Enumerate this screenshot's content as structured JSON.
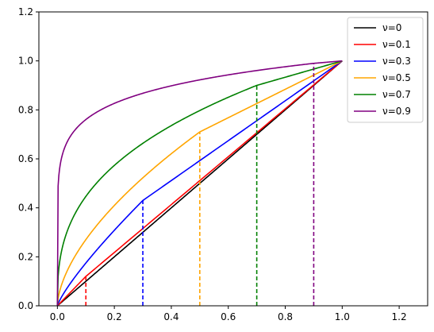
{
  "chart_data": {
    "type": "line",
    "xlim": [
      -0.065,
      1.3
    ],
    "ylim": [
      0,
      1.2
    ],
    "xticks": [
      0.0,
      0.2,
      0.4,
      0.6,
      0.8,
      1.0,
      1.2
    ],
    "xtick_labels": [
      "0.0",
      "0.2",
      "0.4",
      "0.6",
      "0.8",
      "1.0",
      "1.2"
    ],
    "yticks": [
      0.0,
      0.2,
      0.4,
      0.6,
      0.8,
      1.0,
      1.2
    ],
    "ytick_labels": [
      "0.0",
      "0.2",
      "0.4",
      "0.6",
      "0.8",
      "1.0",
      "1.2"
    ],
    "grid": false,
    "legend_position": "top-right",
    "series": [
      {
        "name": "ν=0",
        "nu": 0.0,
        "color": "#000000"
      },
      {
        "name": "ν=0.1",
        "nu": 0.1,
        "color": "#ff0000"
      },
      {
        "name": "ν=0.3",
        "nu": 0.3,
        "color": "#0000ff"
      },
      {
        "name": "ν=0.5",
        "nu": 0.5,
        "color": "#ffa500"
      },
      {
        "name": "ν=0.7",
        "nu": 0.7,
        "color": "#008000"
      },
      {
        "name": "ν=0.9",
        "nu": 0.9,
        "color": "#800080"
      }
    ],
    "dashed_markers": [
      {
        "x": 0.1,
        "y": 0.12,
        "color": "#ff0000"
      },
      {
        "x": 0.3,
        "y": 0.43,
        "color": "#0000ff"
      },
      {
        "x": 0.5,
        "y": 0.71,
        "color": "#ffa500"
      },
      {
        "x": 0.7,
        "y": 0.9,
        "color": "#008000"
      },
      {
        "x": 0.9,
        "y": 0.99,
        "color": "#800080"
      }
    ]
  }
}
